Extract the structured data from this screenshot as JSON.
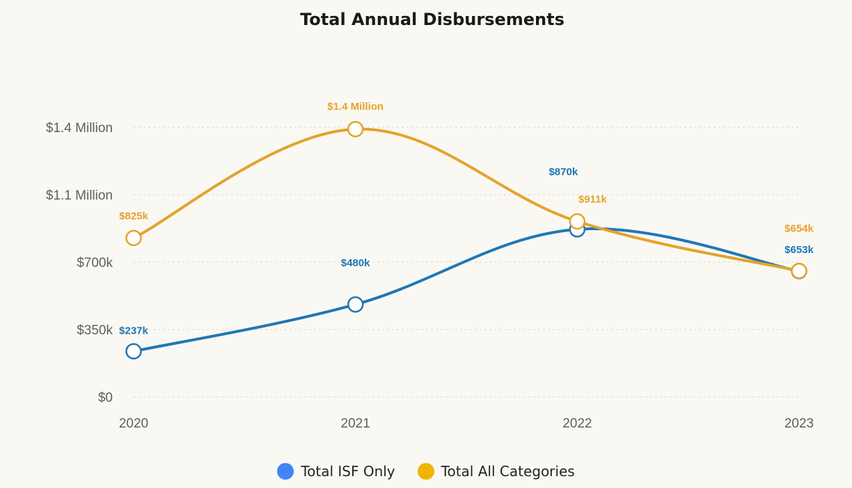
{
  "chart_data": {
    "type": "line",
    "title": "Total Annual Disbursements",
    "categories": [
      "2020",
      "2021",
      "2022",
      "2023"
    ],
    "ylim": [
      0,
      1400000
    ],
    "yticks": [
      0,
      350000,
      700000,
      1050000,
      1400000
    ],
    "ytick_labels": [
      "$0",
      "$350k",
      "$700k",
      "$1.1 Million",
      "$1.4 Million"
    ],
    "grid": true,
    "legend_position": "bottom-center",
    "series": [
      {
        "name": "Total ISF Only",
        "color": "#1f77b4",
        "legend_color": "#4285f4",
        "values": [
          237000,
          480000,
          870000,
          653000
        ],
        "labels": [
          "$237k",
          "$480k",
          "$870k",
          "$653k"
        ]
      },
      {
        "name": "Total All Categories",
        "color": "#e3a32b",
        "legend_color": "#f0b400",
        "values": [
          825000,
          1390000,
          911000,
          654000
        ],
        "labels": [
          "$825k",
          "$1.4 Million",
          "$911k",
          "$654k"
        ]
      }
    ]
  }
}
